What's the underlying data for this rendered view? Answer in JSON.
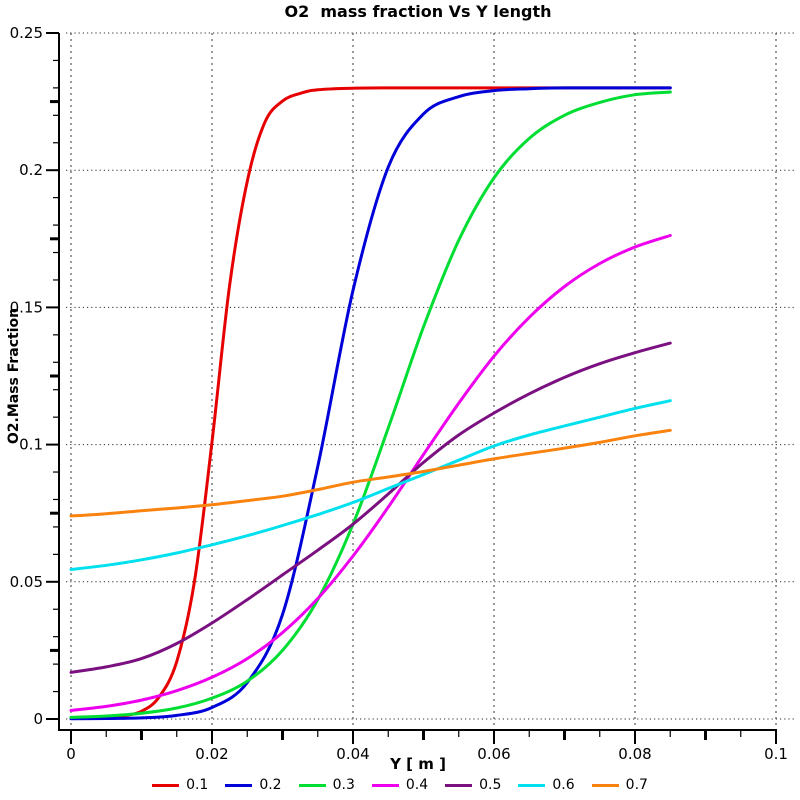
{
  "chart_data": {
    "type": "line",
    "title": "O2  mass fraction Vs Y length",
    "xlabel": "Y [ m ]",
    "ylabel": "O2.Mass Fraction",
    "x_range": [
      0,
      0.1
    ],
    "y_range": [
      0,
      0.25
    ],
    "grid": "dotted gridlines at every major tick, vertical grey, horizontal black",
    "legend_position": "bottom",
    "x_ticks": {
      "major_values": [
        0,
        0.02,
        0.04,
        0.06,
        0.08,
        0.1
      ],
      "major_labels": [
        "0",
        "0.02",
        "0.04",
        "0.06",
        "0.08",
        "0.1"
      ],
      "minor_step": 0.005,
      "mid_tick_offset": 0.01
    },
    "y_ticks": {
      "major_values": [
        0,
        0.05,
        0.1,
        0.15,
        0.2,
        0.25
      ],
      "major_labels": [
        "0",
        "0.05",
        "0.1",
        "0.15",
        "0.2",
        "0.25"
      ],
      "minor_step": 0.01,
      "mid_tick_offset": 0.025
    },
    "colors": {
      "vertical_grid": "#9b9b9b",
      "horizontal_grid": "#2b2b2b",
      "axis": "#000000"
    },
    "series": [
      {
        "name": "0.1",
        "color": "#e60000",
        "points": [
          [
            0,
            0.0002
          ],
          [
            0.005,
            0.0005
          ],
          [
            0.0075,
            0.0012
          ],
          [
            0.01,
            0.0028
          ],
          [
            0.0125,
            0.008
          ],
          [
            0.015,
            0.021
          ],
          [
            0.0175,
            0.05
          ],
          [
            0.02,
            0.101
          ],
          [
            0.0225,
            0.158
          ],
          [
            0.025,
            0.196
          ],
          [
            0.0275,
            0.2175
          ],
          [
            0.03,
            0.2252
          ],
          [
            0.0325,
            0.228
          ],
          [
            0.035,
            0.2293
          ],
          [
            0.04,
            0.2299
          ],
          [
            0.05,
            0.23
          ],
          [
            0.06,
            0.23
          ],
          [
            0.07,
            0.23
          ],
          [
            0.08,
            0.23
          ],
          [
            0.085,
            0.23
          ]
        ]
      },
      {
        "name": "0.2",
        "color": "#0000d9",
        "points": [
          [
            0,
            0.0001
          ],
          [
            0.005,
            0.0002
          ],
          [
            0.01,
            0.0004
          ],
          [
            0.015,
            0.0013
          ],
          [
            0.02,
            0.0042
          ],
          [
            0.025,
            0.0133
          ],
          [
            0.03,
            0.0381
          ],
          [
            0.035,
            0.0921
          ],
          [
            0.04,
            0.1562
          ],
          [
            0.045,
            0.2011
          ],
          [
            0.05,
            0.2205
          ],
          [
            0.055,
            0.2268
          ],
          [
            0.06,
            0.229
          ],
          [
            0.065,
            0.2297
          ],
          [
            0.07,
            0.23
          ],
          [
            0.075,
            0.23
          ],
          [
            0.08,
            0.23
          ],
          [
            0.085,
            0.23
          ]
        ]
      },
      {
        "name": "0.3",
        "color": "#00dd33",
        "points": [
          [
            0,
            0.0006
          ],
          [
            0.005,
            0.0011
          ],
          [
            0.01,
            0.0021
          ],
          [
            0.015,
            0.004
          ],
          [
            0.02,
            0.0076
          ],
          [
            0.025,
            0.0138
          ],
          [
            0.03,
            0.025
          ],
          [
            0.035,
            0.0435
          ],
          [
            0.04,
            0.071
          ],
          [
            0.045,
            0.106
          ],
          [
            0.05,
            0.1429
          ],
          [
            0.055,
            0.1744
          ],
          [
            0.06,
            0.1972
          ],
          [
            0.065,
            0.2116
          ],
          [
            0.07,
            0.22
          ],
          [
            0.075,
            0.2247
          ],
          [
            0.08,
            0.2275
          ],
          [
            0.085,
            0.2285
          ]
        ]
      },
      {
        "name": "0.4",
        "color": "#ee00ee",
        "points": [
          [
            0,
            0.0031
          ],
          [
            0.005,
            0.0046
          ],
          [
            0.01,
            0.0069
          ],
          [
            0.015,
            0.0103
          ],
          [
            0.02,
            0.0152
          ],
          [
            0.025,
            0.022
          ],
          [
            0.03,
            0.0315
          ],
          [
            0.035,
            0.0439
          ],
          [
            0.04,
            0.0594
          ],
          [
            0.045,
            0.0772
          ],
          [
            0.05,
            0.0964
          ],
          [
            0.055,
            0.1151
          ],
          [
            0.06,
            0.1322
          ],
          [
            0.065,
            0.1464
          ],
          [
            0.07,
            0.1576
          ],
          [
            0.075,
            0.166
          ],
          [
            0.08,
            0.172
          ],
          [
            0.085,
            0.1762
          ]
        ]
      },
      {
        "name": "0.5",
        "color": "#7b1080",
        "points": [
          [
            0,
            0.017
          ],
          [
            0.005,
            0.019
          ],
          [
            0.01,
            0.022
          ],
          [
            0.015,
            0.0275
          ],
          [
            0.02,
            0.035
          ],
          [
            0.025,
            0.0435
          ],
          [
            0.03,
            0.0525
          ],
          [
            0.035,
            0.0615
          ],
          [
            0.04,
            0.071
          ],
          [
            0.045,
            0.082
          ],
          [
            0.05,
            0.0935
          ],
          [
            0.055,
            0.1035
          ],
          [
            0.06,
            0.1115
          ],
          [
            0.065,
            0.1185
          ],
          [
            0.07,
            0.1245
          ],
          [
            0.075,
            0.1295
          ],
          [
            0.08,
            0.1335
          ],
          [
            0.085,
            0.137
          ]
        ]
      },
      {
        "name": "0.6",
        "color": "#00e0ee",
        "points": [
          [
            0,
            0.0545
          ],
          [
            0.005,
            0.056
          ],
          [
            0.01,
            0.058
          ],
          [
            0.015,
            0.0605
          ],
          [
            0.02,
            0.0635
          ],
          [
            0.025,
            0.0668
          ],
          [
            0.03,
            0.0705
          ],
          [
            0.035,
            0.0745
          ],
          [
            0.04,
            0.0789
          ],
          [
            0.045,
            0.084
          ],
          [
            0.05,
            0.0891
          ],
          [
            0.055,
            0.0943
          ],
          [
            0.06,
            0.0995
          ],
          [
            0.065,
            0.1035
          ],
          [
            0.07,
            0.1068
          ],
          [
            0.075,
            0.11
          ],
          [
            0.08,
            0.1132
          ],
          [
            0.085,
            0.116
          ]
        ]
      },
      {
        "name": "0.7",
        "color": "#f9830e",
        "points": [
          [
            0,
            0.074
          ],
          [
            0.005,
            0.0748
          ],
          [
            0.01,
            0.0759
          ],
          [
            0.015,
            0.0769
          ],
          [
            0.02,
            0.0781
          ],
          [
            0.025,
            0.0796
          ],
          [
            0.03,
            0.0812
          ],
          [
            0.035,
            0.0836
          ],
          [
            0.04,
            0.0863
          ],
          [
            0.045,
            0.0882
          ],
          [
            0.05,
            0.0902
          ],
          [
            0.055,
            0.0925
          ],
          [
            0.06,
            0.0948
          ],
          [
            0.065,
            0.0968
          ],
          [
            0.07,
            0.0987
          ],
          [
            0.075,
            0.1008
          ],
          [
            0.08,
            0.1032
          ],
          [
            0.085,
            0.1052
          ]
        ]
      }
    ]
  }
}
